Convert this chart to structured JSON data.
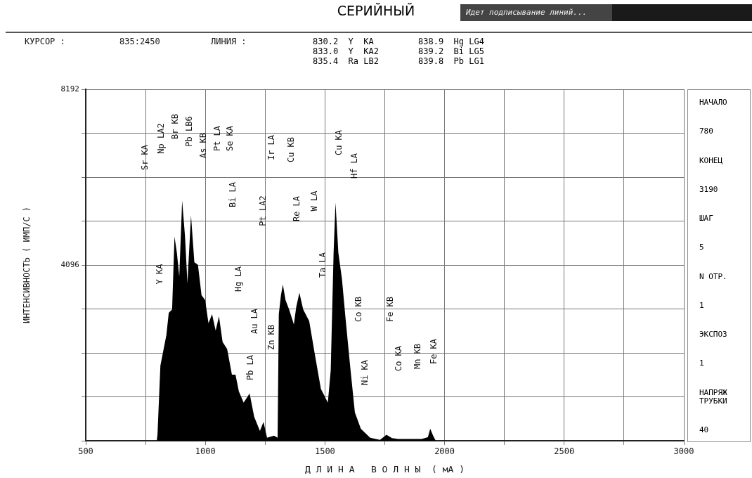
{
  "chart_data": {
    "type": "area",
    "title": "СЕРИЙНЫЙ",
    "xlabel": "Д Л И Н А   В О Л Н Ы  ( мА )",
    "ylabel": "ИНТЕНСИВНОСТЬ ( ИМП/С )",
    "x": [
      780,
      797,
      800,
      812,
      837,
      847,
      861,
      871,
      881,
      891,
      903,
      915,
      925,
      940,
      954,
      969,
      984,
      999,
      1013,
      1028,
      1043,
      1057,
      1072,
      1091,
      1111,
      1126,
      1140,
      1160,
      1185,
      1204,
      1228,
      1243,
      1258,
      1287,
      1302,
      1307,
      1316,
      1324,
      1335,
      1350,
      1370,
      1380,
      1393,
      1409,
      1434,
      1459,
      1483,
      1512,
      1524,
      1536,
      1544,
      1556,
      1571,
      1586,
      1605,
      1625,
      1650,
      1689,
      1730,
      1757,
      1780,
      1806,
      1904,
      1930,
      1940,
      1952,
      1963,
      2000,
      2500,
      3000
    ],
    "series": [
      {
        "color": "#000000",
        "values": [
          0,
          0,
          150,
          1750,
          2460,
          2980,
          3060,
          4760,
          4380,
          3830,
          5600,
          4760,
          3670,
          5250,
          4160,
          4100,
          3390,
          3280,
          2740,
          2950,
          2570,
          2900,
          2300,
          2140,
          1540,
          1540,
          1150,
          890,
          1100,
          560,
          230,
          440,
          70,
          120,
          70,
          2950,
          3390,
          3640,
          3280,
          3060,
          2710,
          3120,
          3450,
          3060,
          2790,
          1970,
          1210,
          890,
          1640,
          4380,
          5550,
          4380,
          3770,
          2850,
          1750,
          660,
          280,
          70,
          20,
          140,
          60,
          40,
          40,
          80,
          280,
          120,
          0,
          0,
          0,
          0
        ]
      }
    ],
    "xlim": [
      500,
      3000
    ],
    "xticks": [
      500,
      {
        "value": 750,
        "label": null
      },
      1000,
      {
        "value": 1250,
        "label": null
      },
      1500,
      {
        "value": 1750,
        "label": null
      },
      2000,
      {
        "value": 2250,
        "label": null
      },
      2500,
      {
        "value": 2750,
        "label": null
      },
      3000
    ],
    "ylim": [
      0,
      8192
    ],
    "yticks": [
      {
        "value": 0,
        "label": null
      },
      {
        "value": 1024,
        "label": null
      },
      {
        "value": 2048,
        "label": null
      },
      {
        "value": 3072,
        "label": null
      },
      4096,
      {
        "value": 5120,
        "label": null
      },
      {
        "value": 6144,
        "label": null
      },
      {
        "value": 7168,
        "label": null
      },
      8192
    ],
    "grid": true,
    "legend": false,
    "annotations": [
      "Идет подписывание линий...",
      "КУРСОР :",
      "835:2450",
      "ЛИНИЯ :",
      "830.2  Y  KA",
      "833.0  Y  KA2",
      "835.4  Ra LB2",
      "838.9  Hg LG4",
      "839.2  Bi LG5",
      "839.8  Pb LG1",
      "НАЧАЛО",
      "780",
      "КОНЕЦ",
      "3190",
      "ШАГ",
      "5",
      "N ОТР.",
      "1",
      "ЭКСПОЗ",
      "1",
      "НАПРЯЖ ТРУБКИ",
      "40",
      "Sr KA",
      "Np LA2",
      "Br KB",
      "Pb LB6",
      "As KB",
      "Pt LA",
      "Se KA",
      "Bi LA",
      "Ir LA",
      "Cu KB",
      "Pt LA2",
      "Re LA",
      "W LA",
      "Cu KA",
      "Hf LA",
      "Y KA",
      "Hg LA",
      "Au LA",
      "Pb LA",
      "Zn KB",
      "Ta LA",
      "Co KB",
      "Ni KA",
      "Fe KB",
      "Co KA",
      "Mn KB",
      "Fe KA"
    ]
  }
}
